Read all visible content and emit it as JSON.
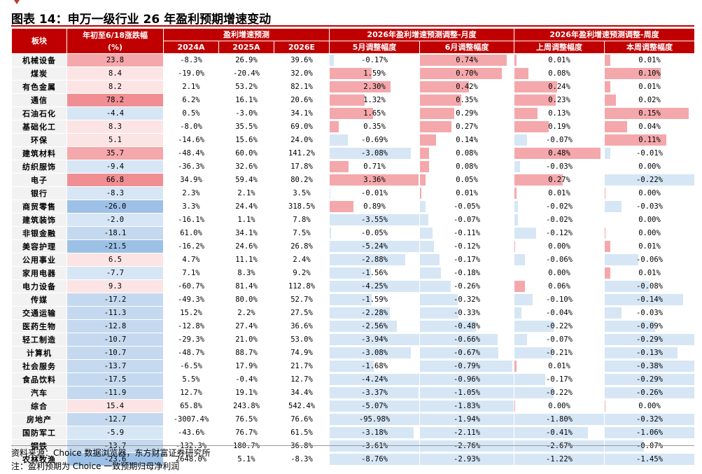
{
  "title": "图表 14：申万一级行业 26 年盈利预期增速变动",
  "header": {
    "sector": "板块",
    "ytd_line1": "年初至6/18涨跌幅",
    "ytd_line2": "(%)",
    "growth_group": "盈利增速预测",
    "monthly_group": "2026年盈利增速预测调整-月度",
    "weekly_group": "2026年盈利增速预测调整-周度",
    "y2024": "2024A",
    "y2025": "2025A",
    "y2026": "2026E",
    "may": "5月调整幅度",
    "june": "6月调整幅度",
    "lastweek": "上周调整幅度",
    "thisweek": "本周调整幅度"
  },
  "colors": {
    "header_bg": "#c00000",
    "positive": "#f4a8ab",
    "negative": "#d6e6f5",
    "ytd_positive_strong": "#f08e93",
    "ytd_negative_strong": "#9dc0e6"
  },
  "rows": [
    {
      "name": "机械设备",
      "ytd": "23.8",
      "ytdv": 23.8,
      "a2024": "-8.3%",
      "a2025": "26.9%",
      "e2026": "39.6%",
      "may": "-0.17%",
      "mayv": -0.17,
      "jun": "0.74%",
      "junv": 0.74,
      "lw": "0.01%",
      "lwv": 0.01,
      "tw": "0.01%",
      "twv": 0.01
    },
    {
      "name": "煤炭",
      "ytd": "8.4",
      "ytdv": 8.4,
      "a2024": "-19.0%",
      "a2025": "-20.4%",
      "e2026": "32.0%",
      "may": "1.59%",
      "mayv": 1.59,
      "jun": "0.70%",
      "junv": 0.7,
      "lw": "0.08%",
      "lwv": 0.08,
      "tw": "0.10%",
      "twv": 0.1
    },
    {
      "name": "有色金属",
      "ytd": "8.2",
      "ytdv": 8.2,
      "a2024": "2.1%",
      "a2025": "53.2%",
      "e2026": "82.1%",
      "may": "2.30%",
      "mayv": 2.3,
      "jun": "0.42%",
      "junv": 0.42,
      "lw": "0.24%",
      "lwv": 0.24,
      "tw": "0.01%",
      "twv": 0.01
    },
    {
      "name": "通信",
      "ytd": "78.2",
      "ytdv": 78.2,
      "a2024": "6.2%",
      "a2025": "16.1%",
      "e2026": "20.6%",
      "may": "1.32%",
      "mayv": 1.32,
      "jun": "0.35%",
      "junv": 0.35,
      "lw": "0.23%",
      "lwv": 0.23,
      "tw": "0.02%",
      "twv": 0.02
    },
    {
      "name": "石油石化",
      "ytd": "-4.4",
      "ytdv": -4.4,
      "a2024": "0.5%",
      "a2025": "-3.0%",
      "e2026": "34.1%",
      "may": "1.65%",
      "mayv": 1.65,
      "jun": "0.29%",
      "junv": 0.29,
      "lw": "0.13%",
      "lwv": 0.13,
      "tw": "0.15%",
      "twv": 0.15
    },
    {
      "name": "基础化工",
      "ytd": "8.3",
      "ytdv": 8.3,
      "a2024": "-8.0%",
      "a2025": "35.5%",
      "e2026": "69.0%",
      "may": "0.35%",
      "mayv": 0.35,
      "jun": "0.27%",
      "junv": 0.27,
      "lw": "0.19%",
      "lwv": 0.19,
      "tw": "0.04%",
      "twv": 0.04
    },
    {
      "name": "环保",
      "ytd": "5.1",
      "ytdv": 5.1,
      "a2024": "-14.6%",
      "a2025": "15.6%",
      "e2026": "24.0%",
      "may": "-0.69%",
      "mayv": -0.69,
      "jun": "0.14%",
      "junv": 0.14,
      "lw": "-0.07%",
      "lwv": -0.07,
      "tw": "0.11%",
      "twv": 0.11
    },
    {
      "name": "建筑材料",
      "ytd": "35.7",
      "ytdv": 35.7,
      "a2024": "-48.4%",
      "a2025": "60.0%",
      "e2026": "141.2%",
      "may": "-3.08%",
      "mayv": -3.08,
      "jun": "0.08%",
      "junv": 0.08,
      "lw": "0.48%",
      "lwv": 0.48,
      "tw": "-0.01%",
      "twv": -0.01
    },
    {
      "name": "纺织服饰",
      "ytd": "-9.4",
      "ytdv": -9.4,
      "a2024": "-36.3%",
      "a2025": "32.6%",
      "e2026": "17.8%",
      "may": "0.71%",
      "mayv": 0.71,
      "jun": "0.08%",
      "junv": 0.08,
      "lw": "-0.03%",
      "lwv": -0.03,
      "tw": "0.00%",
      "twv": 0.0
    },
    {
      "name": "电子",
      "ytd": "66.8",
      "ytdv": 66.8,
      "a2024": "34.9%",
      "a2025": "59.4%",
      "e2026": "80.2%",
      "may": "3.36%",
      "mayv": 3.36,
      "jun": "0.05%",
      "junv": 0.05,
      "lw": "0.27%",
      "lwv": 0.27,
      "tw": "-0.22%",
      "twv": -0.22
    },
    {
      "name": "银行",
      "ytd": "-8.3",
      "ytdv": -8.3,
      "a2024": "2.3%",
      "a2025": "2.1%",
      "e2026": "3.5%",
      "may": "-0.01%",
      "mayv": -0.01,
      "jun": "0.01%",
      "junv": 0.01,
      "lw": "0.01%",
      "lwv": 0.01,
      "tw": "0.00%",
      "twv": 0.001
    },
    {
      "name": "商贸零售",
      "ytd": "-26.0",
      "ytdv": -26.0,
      "a2024": "3.3%",
      "a2025": "24.4%",
      "e2026": "318.5%",
      "may": "0.89%",
      "mayv": 0.89,
      "jun": "-0.05%",
      "junv": -0.05,
      "lw": "-0.02%",
      "lwv": -0.02,
      "tw": "-0.03%",
      "twv": -0.03
    },
    {
      "name": "建筑装饰",
      "ytd": "-2.0",
      "ytdv": -2.0,
      "a2024": "-16.1%",
      "a2025": "1.1%",
      "e2026": "7.8%",
      "may": "-3.55%",
      "mayv": -3.55,
      "jun": "-0.07%",
      "junv": -0.07,
      "lw": "-0.02%",
      "lwv": -0.02,
      "tw": "0.00%",
      "twv": 0.0
    },
    {
      "name": "非银金融",
      "ytd": "-18.1",
      "ytdv": -18.1,
      "a2024": "61.0%",
      "a2025": "34.1%",
      "e2026": "7.5%",
      "may": "-0.05%",
      "mayv": -0.05,
      "jun": "-0.11%",
      "junv": -0.11,
      "lw": "-0.12%",
      "lwv": -0.12,
      "tw": "0.00%",
      "twv": 0.001
    },
    {
      "name": "美容护理",
      "ytd": "-21.5",
      "ytdv": -21.5,
      "a2024": "-16.2%",
      "a2025": "24.6%",
      "e2026": "26.8%",
      "may": "-5.24%",
      "mayv": -5.24,
      "jun": "-0.12%",
      "junv": -0.12,
      "lw": "0.00%",
      "lwv": 0.001,
      "tw": "0.01%",
      "twv": 0.01
    },
    {
      "name": "公用事业",
      "ytd": "6.5",
      "ytdv": 6.5,
      "a2024": "4.7%",
      "a2025": "11.1%",
      "e2026": "2.4%",
      "may": "-2.88%",
      "mayv": -2.88,
      "jun": "-0.17%",
      "junv": -0.17,
      "lw": "-0.06%",
      "lwv": -0.06,
      "tw": "-0.06%",
      "twv": -0.06
    },
    {
      "name": "家用电器",
      "ytd": "-7.7",
      "ytdv": -7.7,
      "a2024": "7.1%",
      "a2025": "8.3%",
      "e2026": "9.2%",
      "may": "-1.56%",
      "mayv": -1.56,
      "jun": "-0.18%",
      "junv": -0.18,
      "lw": "0.00%",
      "lwv": 0.0,
      "tw": "0.01%",
      "twv": 0.01
    },
    {
      "name": "电力设备",
      "ytd": "9.3",
      "ytdv": 9.3,
      "a2024": "-60.7%",
      "a2025": "81.4%",
      "e2026": "112.8%",
      "may": "-4.25%",
      "mayv": -4.25,
      "jun": "-0.26%",
      "junv": -0.26,
      "lw": "0.06%",
      "lwv": 0.06,
      "tw": "-0.08%",
      "twv": -0.08
    },
    {
      "name": "传媒",
      "ytd": "-17.2",
      "ytdv": -17.2,
      "a2024": "-49.3%",
      "a2025": "80.0%",
      "e2026": "52.7%",
      "may": "-1.59%",
      "mayv": -1.59,
      "jun": "-0.32%",
      "junv": -0.32,
      "lw": "-0.10%",
      "lwv": -0.1,
      "tw": "-0.14%",
      "twv": -0.14
    },
    {
      "name": "交通运输",
      "ytd": "-11.3",
      "ytdv": -11.3,
      "a2024": "15.2%",
      "a2025": "2.2%",
      "e2026": "27.5%",
      "may": "-2.28%",
      "mayv": -2.28,
      "jun": "-0.33%",
      "junv": -0.33,
      "lw": "-0.04%",
      "lwv": -0.04,
      "tw": "-0.03%",
      "twv": -0.03
    },
    {
      "name": "医药生物",
      "ytd": "-12.8",
      "ytdv": -12.8,
      "a2024": "-12.8%",
      "a2025": "27.4%",
      "e2026": "36.6%",
      "may": "-2.56%",
      "mayv": -2.56,
      "jun": "-0.48%",
      "junv": -0.48,
      "lw": "-0.22%",
      "lwv": -0.22,
      "tw": "-0.09%",
      "twv": -0.09
    },
    {
      "name": "轻工制造",
      "ytd": "-10.7",
      "ytdv": -10.7,
      "a2024": "-29.3%",
      "a2025": "21.0%",
      "e2026": "53.0%",
      "may": "-3.94%",
      "mayv": -3.94,
      "jun": "-0.66%",
      "junv": -0.66,
      "lw": "-0.07%",
      "lwv": -0.07,
      "tw": "-0.29%",
      "twv": -0.29
    },
    {
      "name": "计算机",
      "ytd": "-10.7",
      "ytdv": -10.7,
      "a2024": "-48.7%",
      "a2025": "88.7%",
      "e2026": "74.9%",
      "may": "-3.08%",
      "mayv": -3.08,
      "jun": "-0.67%",
      "junv": -0.67,
      "lw": "-0.21%",
      "lwv": -0.21,
      "tw": "-0.13%",
      "twv": -0.13
    },
    {
      "name": "社会服务",
      "ytd": "-13.7",
      "ytdv": -13.7,
      "a2024": "-6.5%",
      "a2025": "17.9%",
      "e2026": "21.7%",
      "may": "-1.68%",
      "mayv": -1.68,
      "jun": "-0.79%",
      "junv": -0.79,
      "lw": "0.01%",
      "lwv": 0.01,
      "tw": "-0.38%",
      "twv": -0.38
    },
    {
      "name": "食品饮料",
      "ytd": "-17.5",
      "ytdv": -17.5,
      "a2024": "5.5%",
      "a2025": "-0.4%",
      "e2026": "12.7%",
      "may": "-4.24%",
      "mayv": -4.24,
      "jun": "-0.96%",
      "junv": -0.96,
      "lw": "-0.17%",
      "lwv": -0.17,
      "tw": "-0.29%",
      "twv": -0.29
    },
    {
      "name": "汽车",
      "ytd": "-11.9",
      "ytdv": -11.9,
      "a2024": "12.7%",
      "a2025": "19.1%",
      "e2026": "34.4%",
      "may": "-3.37%",
      "mayv": -3.37,
      "jun": "-1.05%",
      "junv": -1.05,
      "lw": "-0.22%",
      "lwv": -0.22,
      "tw": "-0.26%",
      "twv": -0.26
    },
    {
      "name": "综合",
      "ytd": "15.4",
      "ytdv": 15.4,
      "a2024": "65.8%",
      "a2025": "243.8%",
      "e2026": "542.4%",
      "may": "-5.07%",
      "mayv": -5.07,
      "jun": "-1.83%",
      "junv": -1.83,
      "lw": "0.00%",
      "lwv": 0.001,
      "tw": "0.00%",
      "twv": 0.001
    },
    {
      "name": "房地产",
      "ytd": "-12.7",
      "ytdv": -12.7,
      "a2024": "-3007.4%",
      "a2025": "76.5%",
      "e2026": "76.6%",
      "may": "-95.98%",
      "mayv": -95.98,
      "jun": "-1.94%",
      "junv": -1.94,
      "lw": "-1.80%",
      "lwv": -1.8,
      "tw": "-0.32%",
      "twv": -0.32
    },
    {
      "name": "国防军工",
      "ytd": "-5.9",
      "ytdv": -5.9,
      "a2024": "-43.6%",
      "a2025": "76.7%",
      "e2026": "61.5%",
      "may": "-3.18%",
      "mayv": -3.18,
      "jun": "-2.11%",
      "junv": -2.11,
      "lw": "-0.41%",
      "lwv": -0.41,
      "tw": "-1.06%",
      "twv": -1.06
    },
    {
      "name": "钢铁",
      "ytd": "-13.7",
      "ytdv": -13.7,
      "a2024": "-132.3%",
      "a2025": "180.7%",
      "e2026": "36.8%",
      "may": "-3.61%",
      "mayv": -3.61,
      "jun": "-2.76%",
      "junv": -2.76,
      "lw": "-2.67%",
      "lwv": -2.67,
      "tw": "-0.07%",
      "twv": -0.07
    },
    {
      "name": "农林牧渔",
      "ytd": "-23.6",
      "ytdv": -23.6,
      "a2024": "2648.0%",
      "a2025": "5.1%",
      "e2026": "-8.3%",
      "may": "-8.76%",
      "mayv": -8.76,
      "jun": "-2.93%",
      "junv": -2.93,
      "lw": "-1.22%",
      "lwv": -1.22,
      "tw": "-1.45%",
      "twv": -1.45
    }
  ],
  "notes": {
    "source": "资料来源：Choice 数据浏览器，东方财富证券研究所",
    "note": "注：盈利预期为 Choice 一致预期归母净利润"
  }
}
